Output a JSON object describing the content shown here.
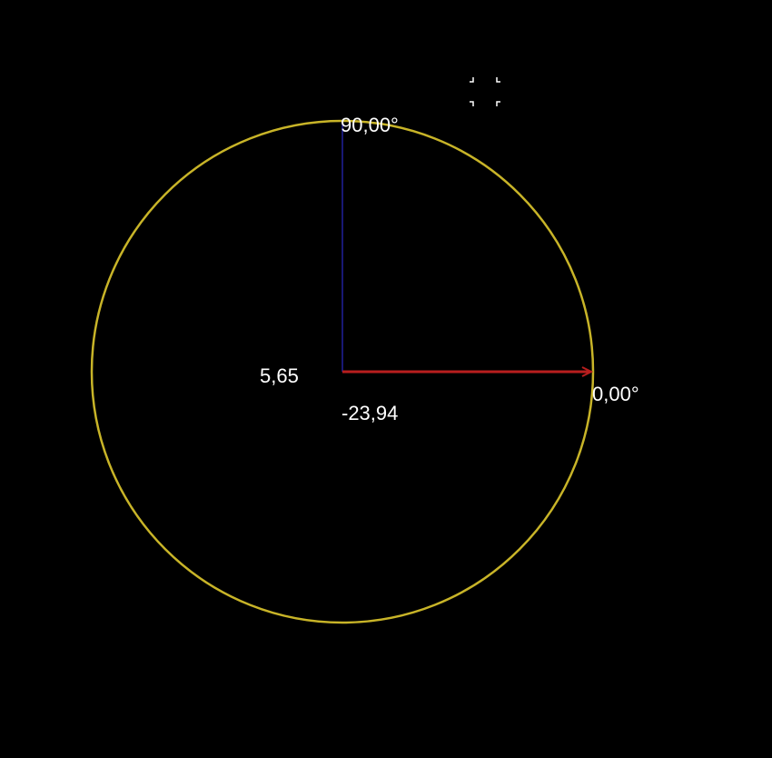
{
  "labels": {
    "angle_top": "90,00°",
    "angle_right": "0,00°",
    "center_left_value": "5,65",
    "center_below_value": "-23,94"
  },
  "colors": {
    "background": "#000000",
    "circle": "#c8b428",
    "x_axis": "#b81e1e",
    "y_axis": "#20209a",
    "text": "#ffffff",
    "cursor": "#ffffff"
  },
  "icons": {
    "cursor": "crosshair-cursor-icon"
  }
}
